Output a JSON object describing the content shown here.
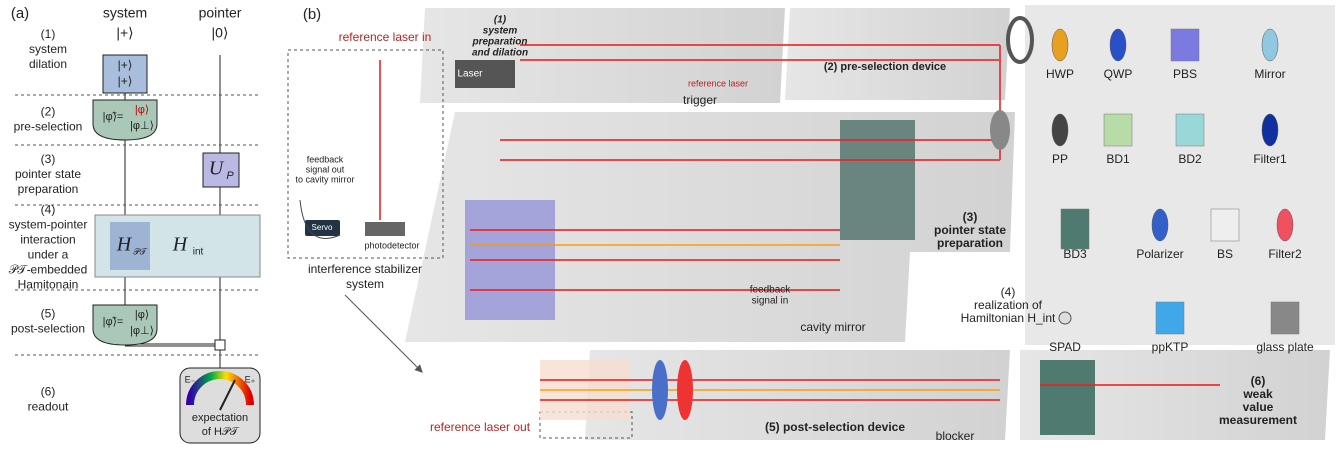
{
  "panel_a": {
    "label": "(a)",
    "system": "system",
    "system_state": "|+⟩",
    "pointer": "pointer",
    "pointer_state": "|0⟩",
    "steps": [
      {
        "number": "(1)",
        "lines": [
          "system",
          "dilation"
        ]
      },
      {
        "number": "(2)",
        "lines": [
          "pre-selection"
        ]
      },
      {
        "number": "(3)",
        "lines": [
          "pointer state",
          "preparation"
        ]
      },
      {
        "number": "(4)",
        "lines": [
          "system-pointer",
          "interaction",
          "under a",
          "𝒫𝒯-embedded",
          "Hamitonain"
        ]
      },
      {
        "number": "(5)",
        "lines": [
          "post-selection"
        ]
      },
      {
        "number": "(6)",
        "lines": [
          "readout"
        ]
      }
    ],
    "dilation_gate": [
      "|+⟩",
      "|+⟩"
    ],
    "preselection_gate": {
      "lhs": "|φ̃⟩=",
      "top": "|φ⟩",
      "bottom": "|φ⊥⟩"
    },
    "postselection_gate": {
      "lhs": "|φ̃⟩=",
      "top": "|φ⟩",
      "bottom": "|φ⊥⟩"
    },
    "pointer_gate": {
      "symbol": "U",
      "sub": "P"
    },
    "interaction_left": {
      "symbol": "H",
      "sub": "𝒫𝒯"
    },
    "interaction_right": {
      "symbol": "H",
      "sub": "int"
    },
    "meter": {
      "left": "E₋",
      "right": "E₊",
      "lines": [
        "expectation",
        "of H𝒫𝒯"
      ]
    }
  },
  "panel_b": {
    "label": "(b)",
    "stage1": [
      "(1)",
      "system",
      "preparation",
      "and dilation"
    ],
    "laser": "Laser",
    "reference_laser": "reference laser",
    "trigger": "trigger",
    "stage2": "(2) pre-selection device",
    "stage3": [
      "(3)",
      "pointer state",
      "preparation"
    ],
    "stage4": [
      "(4)",
      "realization of",
      "Hamiltonian H_int"
    ],
    "feedback_in": [
      "feedback",
      "signal in"
    ],
    "cavity_mirror": "cavity mirror",
    "stage5": "(5) post-selection device",
    "blocker": "blocker",
    "stage6": [
      "(6)",
      "weak",
      "value",
      "measurement"
    ],
    "reference_in": "reference laser in",
    "reference_out": "reference laser out",
    "feedback_out": [
      "feedback",
      "signal out",
      "to cavity mirror"
    ],
    "servo": "Servo",
    "photodetector": "photodetector",
    "stabilizer": [
      "interference stabilizer",
      "system"
    ]
  },
  "legend": {
    "items": [
      "HWP",
      "QWP",
      "PBS",
      "Mirror",
      "PP",
      "BD1",
      "BD2",
      "Filter1",
      "BD3",
      "Polarizer",
      "BS",
      "Filter2",
      "SPAD",
      "ppKTP",
      "glass plate"
    ]
  }
}
